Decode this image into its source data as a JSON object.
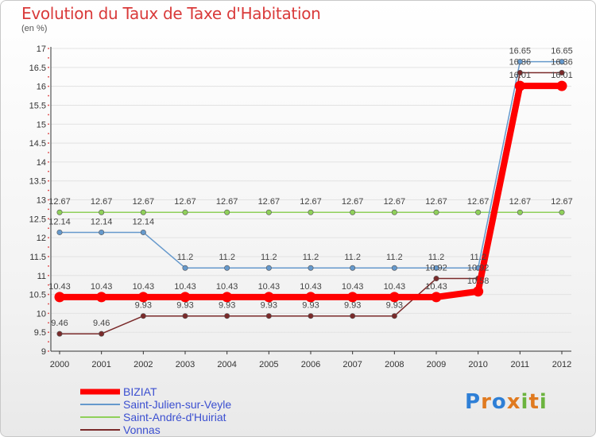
{
  "title": "Evolution du Taux de Taxe d'Habitation",
  "unit": "(en %)",
  "logo": {
    "text": "Proxiti",
    "letter_colors": [
      "#2e7fd6",
      "#e07a1f",
      "#2e7fd6",
      "#e07a1f",
      "#6cb43f",
      "#e07a1f",
      "#6cb43f"
    ]
  },
  "chart_data": {
    "type": "line",
    "title": "Evolution du Taux de Taxe d'Habitation",
    "ylabel": "(en %)",
    "xlabel": "",
    "ylim": [
      9,
      17
    ],
    "yticks": [
      "9",
      "9.5",
      "10",
      "10.5",
      "11",
      "11.5",
      "12",
      "12.5",
      "13",
      "13.5",
      "14",
      "14.5",
      "15",
      "15.5",
      "16",
      "16.5",
      "17"
    ],
    "ytick_values": [
      9,
      9.5,
      10,
      10.5,
      11,
      11.5,
      12,
      12.5,
      13,
      13.5,
      14,
      14.5,
      15,
      15.5,
      16,
      16.5,
      17
    ],
    "categories": [
      "2000",
      "2001",
      "2002",
      "2003",
      "2004",
      "2005",
      "2006",
      "2007",
      "2008",
      "2009",
      "2010",
      "2011",
      "2012"
    ],
    "series": [
      {
        "name": "Saint-André-d'Huiriat",
        "color": "#8fd05a",
        "values": [
          12.67,
          12.67,
          12.67,
          12.67,
          12.67,
          12.67,
          12.67,
          12.67,
          12.67,
          12.67,
          12.67,
          12.67,
          12.67
        ],
        "labels": [
          "12.67",
          "12.67",
          "12.67",
          "12.67",
          "12.67",
          "12.67",
          "12.67",
          "12.67",
          "12.67",
          "12.67",
          "12.67",
          "12.67",
          "12.67"
        ]
      },
      {
        "name": "Saint-Julien-sur-Veyle",
        "color": "#6699cc",
        "values": [
          12.14,
          12.14,
          12.14,
          11.2,
          11.2,
          11.2,
          11.2,
          11.2,
          11.2,
          11.2,
          11.2,
          16.65,
          16.65
        ],
        "labels": [
          "12.14",
          "12.14",
          "12.14",
          "11.2",
          "11.2",
          "11.2",
          "11.2",
          "11.2",
          "11.2",
          "11.2",
          "11.2",
          "16.65",
          "16.65"
        ]
      },
      {
        "name": "Vonnas",
        "color": "#7a2a2a",
        "values": [
          9.46,
          9.46,
          9.93,
          9.93,
          9.93,
          9.93,
          9.93,
          9.93,
          9.93,
          10.92,
          10.92,
          16.36,
          16.36
        ],
        "labels": [
          "9.46",
          "9.46",
          "9.93",
          "9.93",
          "9.93",
          "9.93",
          "9.93",
          "9.93",
          "9.93",
          "10.92",
          "10.92",
          "16.36",
          "16.36"
        ]
      },
      {
        "name": "BIZIAT",
        "color": "#ff0000",
        "values": [
          10.43,
          10.43,
          10.43,
          10.43,
          10.43,
          10.43,
          10.43,
          10.43,
          10.43,
          10.43,
          10.58,
          16.01,
          16.01
        ],
        "labels": [
          "10.43",
          "10.43",
          "10.43",
          "10.43",
          "10.43",
          "10.43",
          "10.43",
          "10.43",
          "10.43",
          "10.43",
          "10.58",
          "16.01",
          "16.01"
        ]
      }
    ],
    "legend": [
      "BIZIAT",
      "Saint-Julien-sur-Veyle",
      "Saint-André-d'Huiriat",
      "Vonnas"
    ]
  }
}
